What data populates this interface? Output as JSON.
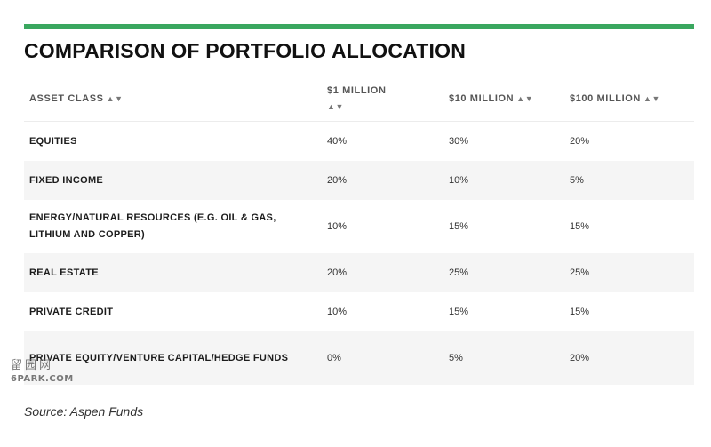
{
  "accent_color": "#3aa75f",
  "title": "COMPARISON OF PORTFOLIO ALLOCATION",
  "chart_data": {
    "type": "table",
    "columns": [
      "ASSET CLASS",
      "$1 MILLION",
      "$10 MILLION",
      "$100 MILLION"
    ],
    "sort_icon": "sort-arrows-icon",
    "rows": [
      {
        "asset": "EQUITIES",
        "v1m": "40%",
        "v10m": "30%",
        "v100m": "20%"
      },
      {
        "asset": "FIXED INCOME",
        "v1m": "20%",
        "v10m": "10%",
        "v100m": "5%"
      },
      {
        "asset": "ENERGY/NATURAL RESOURCES (E.G. OIL & GAS, LITHIUM AND COPPER)",
        "v1m": "10%",
        "v10m": "15%",
        "v100m": "15%"
      },
      {
        "asset": "REAL ESTATE",
        "v1m": "20%",
        "v10m": "25%",
        "v100m": "25%"
      },
      {
        "asset": "PRIVATE CREDIT",
        "v1m": "10%",
        "v10m": "15%",
        "v100m": "15%"
      },
      {
        "asset": "PRIVATE EQUITY/VENTURE CAPITAL/HEDGE FUNDS",
        "v1m": "0%",
        "v10m": "5%",
        "v100m": "20%"
      }
    ]
  },
  "source": "Source: Aspen Funds",
  "watermark": {
    "top": "留园网",
    "bottom": "6PARK.COM"
  }
}
